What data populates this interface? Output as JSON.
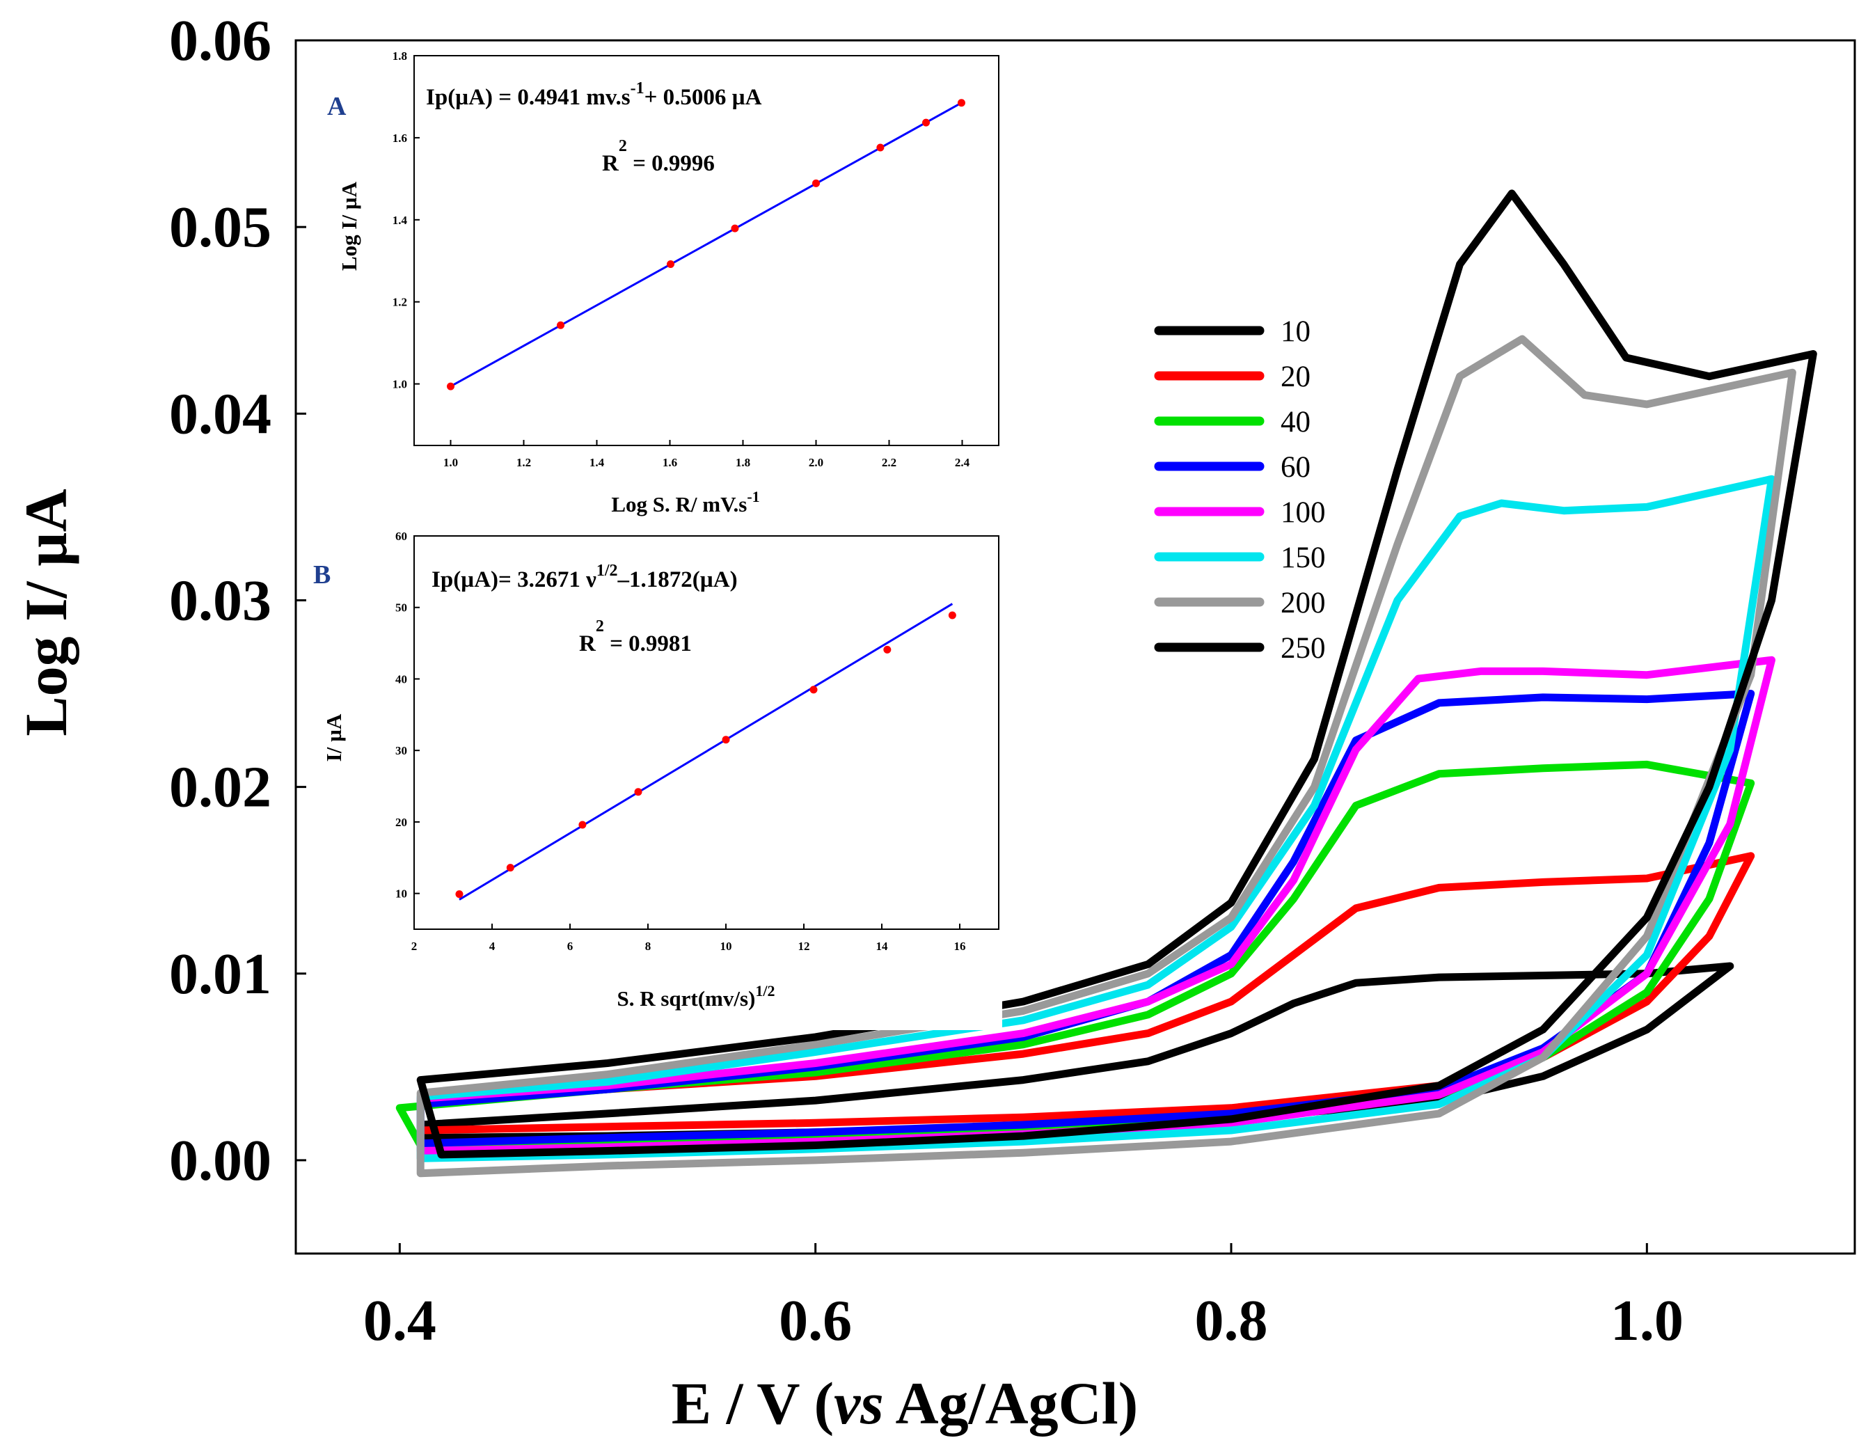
{
  "chart_data": [
    {
      "type": "line",
      "panel": "main",
      "xlabel_parts": [
        "E / V (",
        "vs",
        " Ag/AgCl)"
      ],
      "ylabel": "Log I/ µA",
      "xlim": [
        0.35,
        1.1
      ],
      "ylim": [
        -0.005,
        0.06
      ],
      "x_ticks": [
        "0.4",
        "0.6",
        "0.8",
        "1.0"
      ],
      "x_tick_values": [
        0.4,
        0.6,
        0.8,
        1.0
      ],
      "y_ticks": [
        "0.00",
        "0.01",
        "0.02",
        "0.03",
        "0.04",
        "0.05",
        "0.06"
      ],
      "y_tick_values": [
        0.0,
        0.01,
        0.02,
        0.03,
        0.04,
        0.05,
        0.06
      ],
      "legend_position": "right",
      "series": [
        {
          "name": "10",
          "color": "#000000",
          "anodic": [
            [
              0.41,
              0.0019
            ],
            [
              0.5,
              0.0025
            ],
            [
              0.6,
              0.0032
            ],
            [
              0.7,
              0.0043
            ],
            [
              0.76,
              0.0053
            ],
            [
              0.8,
              0.0068
            ],
            [
              0.83,
              0.0084
            ],
            [
              0.86,
              0.0095
            ],
            [
              0.9,
              0.0098
            ],
            [
              0.95,
              0.0099
            ],
            [
              1.0,
              0.01
            ],
            [
              1.04,
              0.0104
            ]
          ],
          "cathodic": [
            [
              1.04,
              0.0104
            ],
            [
              1.0,
              0.007
            ],
            [
              0.95,
              0.0045
            ],
            [
              0.9,
              0.0032
            ],
            [
              0.8,
              0.0022
            ],
            [
              0.7,
              0.0017
            ],
            [
              0.6,
              0.0015
            ],
            [
              0.5,
              0.0013
            ],
            [
              0.41,
              0.0012
            ]
          ]
        },
        {
          "name": "20",
          "color": "#ff0000",
          "anodic": [
            [
              0.41,
              0.003
            ],
            [
              0.5,
              0.0038
            ],
            [
              0.6,
              0.0045
            ],
            [
              0.7,
              0.0057
            ],
            [
              0.76,
              0.0068
            ],
            [
              0.8,
              0.0085
            ],
            [
              0.83,
              0.011
            ],
            [
              0.86,
              0.0135
            ],
            [
              0.9,
              0.0146
            ],
            [
              0.95,
              0.0149
            ],
            [
              1.0,
              0.0151
            ],
            [
              1.05,
              0.0163
            ]
          ],
          "cathodic": [
            [
              1.05,
              0.0163
            ],
            [
              1.03,
              0.012
            ],
            [
              1.0,
              0.0085
            ],
            [
              0.95,
              0.0055
            ],
            [
              0.9,
              0.004
            ],
            [
              0.8,
              0.0028
            ],
            [
              0.7,
              0.0023
            ],
            [
              0.6,
              0.002
            ],
            [
              0.5,
              0.0018
            ],
            [
              0.41,
              0.0016
            ]
          ]
        },
        {
          "name": "40",
          "color": "#00e000",
          "anodic": [
            [
              0.4,
              0.0028
            ],
            [
              0.5,
              0.0038
            ],
            [
              0.6,
              0.0047
            ],
            [
              0.7,
              0.0062
            ],
            [
              0.76,
              0.0078
            ],
            [
              0.8,
              0.01
            ],
            [
              0.83,
              0.014
            ],
            [
              0.86,
              0.019
            ],
            [
              0.9,
              0.0207
            ],
            [
              0.95,
              0.021
            ],
            [
              1.0,
              0.0212
            ],
            [
              1.05,
              0.0202
            ]
          ],
          "cathodic": [
            [
              1.05,
              0.0202
            ],
            [
              1.03,
              0.014
            ],
            [
              1.0,
              0.009
            ],
            [
              0.95,
              0.0055
            ],
            [
              0.9,
              0.0035
            ],
            [
              0.8,
              0.0023
            ],
            [
              0.7,
              0.0017
            ],
            [
              0.6,
              0.0013
            ],
            [
              0.5,
              0.001
            ],
            [
              0.41,
              0.0008
            ]
          ]
        },
        {
          "name": "60",
          "color": "#0000ff",
          "anodic": [
            [
              0.41,
              0.003
            ],
            [
              0.5,
              0.0038
            ],
            [
              0.6,
              0.005
            ],
            [
              0.7,
              0.0066
            ],
            [
              0.76,
              0.0085
            ],
            [
              0.8,
              0.011
            ],
            [
              0.83,
              0.016
            ],
            [
              0.86,
              0.0225
            ],
            [
              0.9,
              0.0245
            ],
            [
              0.95,
              0.0248
            ],
            [
              1.0,
              0.0247
            ],
            [
              1.05,
              0.025
            ]
          ],
          "cathodic": [
            [
              1.05,
              0.025
            ],
            [
              1.03,
              0.017
            ],
            [
              1.0,
              0.01
            ],
            [
              0.95,
              0.006
            ],
            [
              0.9,
              0.0038
            ],
            [
              0.8,
              0.0025
            ],
            [
              0.7,
              0.0019
            ],
            [
              0.6,
              0.0015
            ],
            [
              0.5,
              0.0012
            ],
            [
              0.41,
              0.0009
            ]
          ]
        },
        {
          "name": "100",
          "color": "#ff00ff",
          "anodic": [
            [
              0.41,
              0.0033
            ],
            [
              0.5,
              0.004
            ],
            [
              0.6,
              0.0052
            ],
            [
              0.7,
              0.0068
            ],
            [
              0.76,
              0.0085
            ],
            [
              0.8,
              0.0105
            ],
            [
              0.83,
              0.015
            ],
            [
              0.86,
              0.022
            ],
            [
              0.89,
              0.0258
            ],
            [
              0.92,
              0.0262
            ],
            [
              0.95,
              0.0262
            ],
            [
              1.0,
              0.026
            ],
            [
              1.06,
              0.0268
            ]
          ],
          "cathodic": [
            [
              1.06,
              0.0268
            ],
            [
              1.04,
              0.018
            ],
            [
              1.0,
              0.01
            ],
            [
              0.95,
              0.0058
            ],
            [
              0.9,
              0.0035
            ],
            [
              0.8,
              0.002
            ],
            [
              0.7,
              0.0014
            ],
            [
              0.6,
              0.001
            ],
            [
              0.5,
              0.0007
            ],
            [
              0.41,
              0.0005
            ]
          ]
        },
        {
          "name": "150",
          "color": "#00e5ee",
          "anodic": [
            [
              0.41,
              0.0034
            ],
            [
              0.5,
              0.0042
            ],
            [
              0.6,
              0.0058
            ],
            [
              0.7,
              0.0075
            ],
            [
              0.76,
              0.0094
            ],
            [
              0.8,
              0.0125
            ],
            [
              0.84,
              0.019
            ],
            [
              0.88,
              0.03
            ],
            [
              0.91,
              0.0345
            ],
            [
              0.93,
              0.0352
            ],
            [
              0.96,
              0.0348
            ],
            [
              1.0,
              0.035
            ],
            [
              1.06,
              0.0365
            ]
          ],
          "cathodic": [
            [
              1.06,
              0.0365
            ],
            [
              1.04,
              0.022
            ],
            [
              1.0,
              0.011
            ],
            [
              0.95,
              0.0055
            ],
            [
              0.9,
              0.003
            ],
            [
              0.8,
              0.0016
            ],
            [
              0.7,
              0.001
            ],
            [
              0.6,
              0.0006
            ],
            [
              0.5,
              0.0003
            ],
            [
              0.41,
              0.0001
            ]
          ]
        },
        {
          "name": "200",
          "color": "#999999",
          "anodic": [
            [
              0.41,
              0.0036
            ],
            [
              0.5,
              0.0046
            ],
            [
              0.6,
              0.0062
            ],
            [
              0.7,
              0.008
            ],
            [
              0.76,
              0.01
            ],
            [
              0.8,
              0.013
            ],
            [
              0.84,
              0.02
            ],
            [
              0.88,
              0.033
            ],
            [
              0.91,
              0.042
            ],
            [
              0.94,
              0.044
            ],
            [
              0.97,
              0.041
            ],
            [
              1.0,
              0.0405
            ],
            [
              1.07,
              0.0422
            ]
          ],
          "cathodic": [
            [
              1.07,
              0.0422
            ],
            [
              1.05,
              0.026
            ],
            [
              1.0,
              0.012
            ],
            [
              0.95,
              0.0055
            ],
            [
              0.9,
              0.0025
            ],
            [
              0.8,
              0.001
            ],
            [
              0.7,
              0.0004
            ],
            [
              0.6,
              0.0
            ],
            [
              0.5,
              -0.0003
            ],
            [
              0.41,
              -0.0007
            ]
          ]
        },
        {
          "name": "250",
          "color": "#000000",
          "anodic": [
            [
              0.41,
              0.0043
            ],
            [
              0.5,
              0.0052
            ],
            [
              0.6,
              0.0066
            ],
            [
              0.7,
              0.0085
            ],
            [
              0.76,
              0.0105
            ],
            [
              0.8,
              0.0138
            ],
            [
              0.84,
              0.0215
            ],
            [
              0.88,
              0.037
            ],
            [
              0.91,
              0.048
            ],
            [
              0.935,
              0.0518
            ],
            [
              0.96,
              0.048
            ],
            [
              0.99,
              0.043
            ],
            [
              1.03,
              0.042
            ],
            [
              1.08,
              0.0432
            ]
          ],
          "cathodic": [
            [
              1.08,
              0.0432
            ],
            [
              1.06,
              0.03
            ],
            [
              1.03,
              0.02
            ],
            [
              1.0,
              0.013
            ],
            [
              0.95,
              0.007
            ],
            [
              0.9,
              0.004
            ],
            [
              0.8,
              0.0022
            ],
            [
              0.7,
              0.0013
            ],
            [
              0.6,
              0.0008
            ],
            [
              0.5,
              0.0005
            ],
            [
              0.42,
              0.0003
            ]
          ]
        }
      ]
    },
    {
      "type": "scatter",
      "panel": "inset-A",
      "letter": "A",
      "xlabel_parts": [
        "Log S. R/ mV.s",
        "-1"
      ],
      "ylabel": "Log I/ µA",
      "xlim": [
        0.9,
        2.5
      ],
      "ylim": [
        0.85,
        1.8
      ],
      "x_ticks": [
        "1.0",
        "1.2",
        "1.4",
        "1.6",
        "1.8",
        "2.0",
        "2.2",
        "2.4"
      ],
      "x_tick_values": [
        1.0,
        1.2,
        1.4,
        1.6,
        1.8,
        2.0,
        2.2,
        2.4
      ],
      "y_ticks": [
        "1.0",
        "1.2",
        "1.4",
        "1.6",
        "1.8"
      ],
      "y_tick_values": [
        1.0,
        1.2,
        1.4,
        1.6,
        1.8
      ],
      "equation_parts": [
        "Ip(µA) = 0.4941 mv.s",
        "-1",
        "+ 0.5006 µA"
      ],
      "r2_parts": [
        "R",
        "2",
        " = 0.9996"
      ],
      "x": [
        1.0,
        1.301,
        1.602,
        1.778,
        2.0,
        2.176,
        2.301,
        2.398
      ],
      "y": [
        0.994,
        1.143,
        1.292,
        1.379,
        1.489,
        1.576,
        1.637,
        1.685
      ],
      "fit_line": [
        [
          1.0,
          0.994
        ],
        [
          2.4,
          1.686
        ]
      ],
      "point_color": "#ff0000",
      "line_color": "#0000ff"
    },
    {
      "type": "scatter",
      "panel": "inset-B",
      "letter": "B",
      "xlabel_parts": [
        "S. R sqrt(mv/s)",
        "1/2"
      ],
      "ylabel": "I/ µA",
      "xlim": [
        2,
        17
      ],
      "ylim": [
        5,
        60
      ],
      "x_ticks": [
        "2",
        "4",
        "6",
        "8",
        "10",
        "12",
        "14",
        "16"
      ],
      "x_tick_values": [
        2,
        4,
        6,
        8,
        10,
        12,
        14,
        16
      ],
      "y_ticks": [
        "10",
        "20",
        "30",
        "40",
        "50",
        "60"
      ],
      "y_tick_values": [
        10,
        20,
        30,
        40,
        50,
        60
      ],
      "equation_parts": [
        "Ip(µA)= 3.2671 ν",
        "1/2",
        "–1.1872(µA)"
      ],
      "r2_parts": [
        "R",
        "2",
        " =  0.9981"
      ],
      "x": [
        3.16,
        4.47,
        6.32,
        7.75,
        10.0,
        12.25,
        14.14,
        15.81
      ],
      "y": [
        9.9,
        13.6,
        19.6,
        24.2,
        31.5,
        38.5,
        44.1,
        48.9
      ],
      "fit_line": [
        [
          3.16,
          9.14
        ],
        [
          15.81,
          50.5
        ]
      ],
      "point_color": "#ff0000",
      "line_color": "#0000ff"
    }
  ]
}
